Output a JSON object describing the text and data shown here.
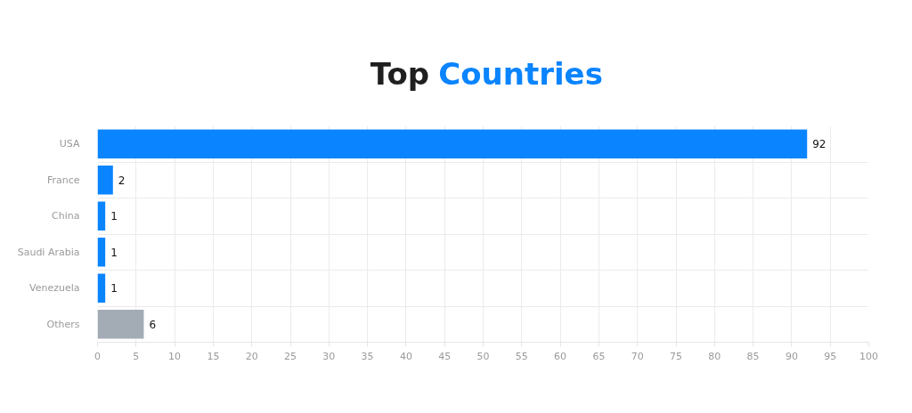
{
  "chart_data": {
    "type": "bar",
    "orientation": "horizontal",
    "title": "Top Countries",
    "categories": [
      "USA",
      "France",
      "China",
      "Saudi Arabia",
      "Venezuela",
      "Others"
    ],
    "values": [
      92,
      2,
      1,
      1,
      1,
      6
    ],
    "colors": [
      "#0a84ff",
      "#0a84ff",
      "#0a84ff",
      "#0a84ff",
      "#0a84ff",
      "#a3acb5"
    ],
    "xlim": [
      0,
      100
    ],
    "xticks": [
      0,
      5,
      10,
      15,
      20,
      25,
      30,
      35,
      40,
      45,
      50,
      55,
      60,
      65,
      70,
      75,
      80,
      85,
      90,
      95,
      100
    ],
    "grid": true,
    "data_labels": true
  }
}
